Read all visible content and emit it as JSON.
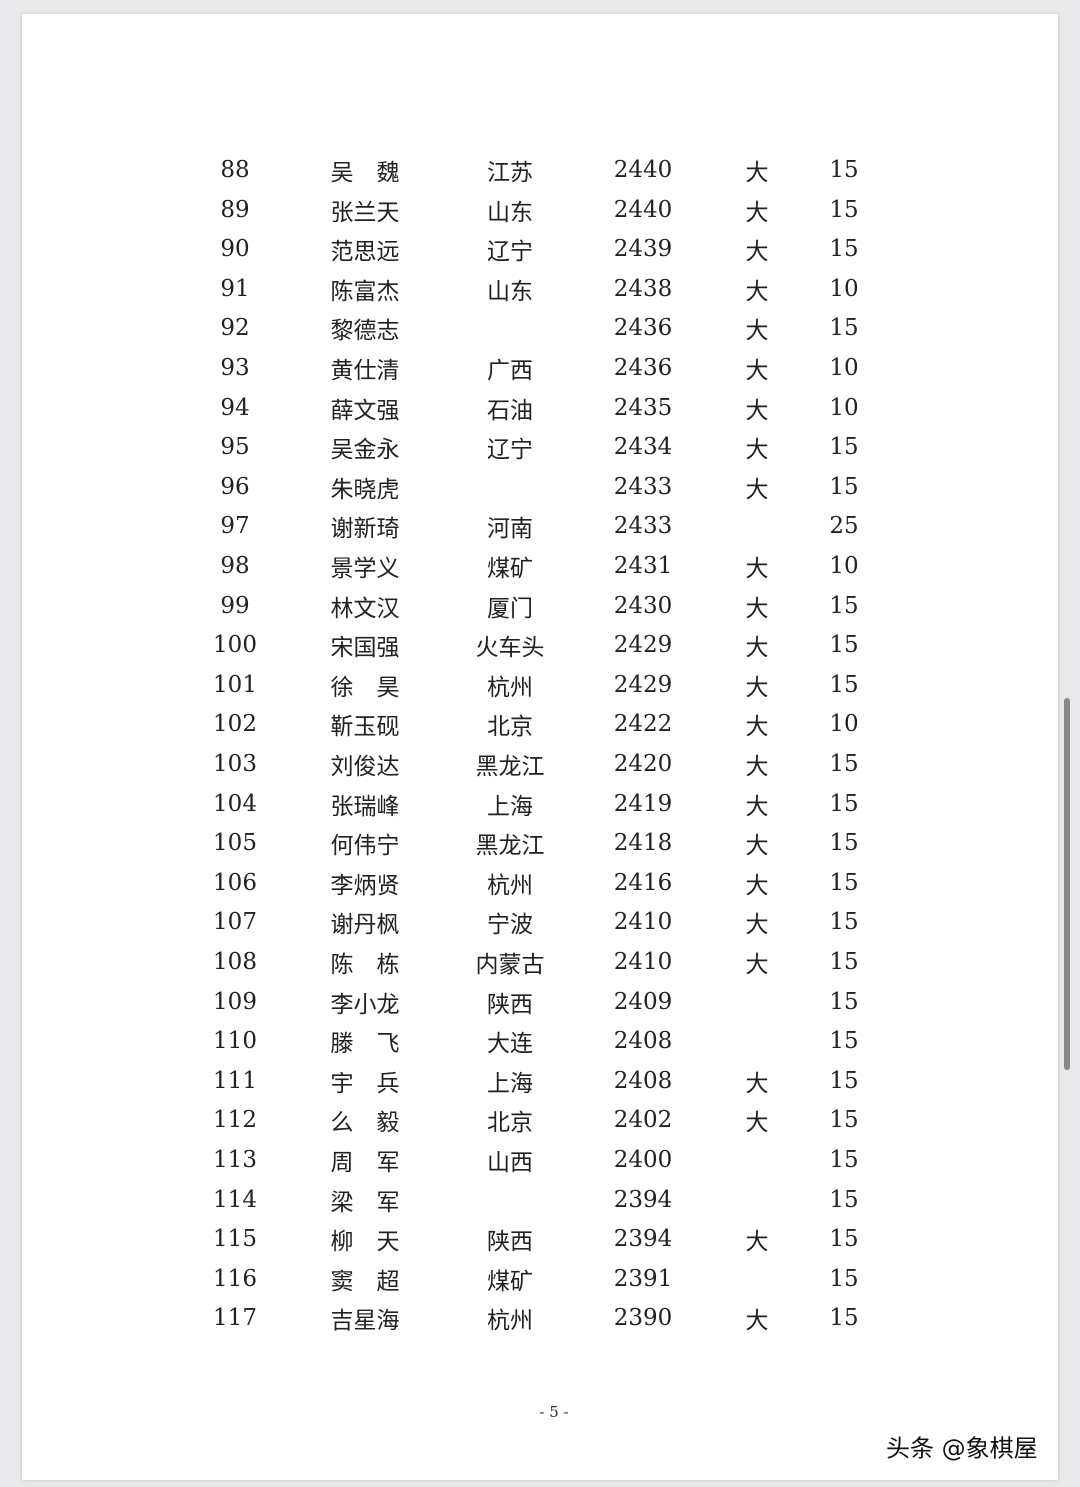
{
  "table": {
    "rows": [
      [
        "88",
        "吴　魏",
        "江苏",
        "2440",
        "大",
        "15"
      ],
      [
        "89",
        "张兰天",
        "山东",
        "2440",
        "大",
        "15"
      ],
      [
        "90",
        "范思远",
        "辽宁",
        "2439",
        "大",
        "15"
      ],
      [
        "91",
        "陈富杰",
        "山东",
        "2438",
        "大",
        "10"
      ],
      [
        "92",
        "黎德志",
        null,
        "2436",
        "大",
        "15"
      ],
      [
        "93",
        "黄仕清",
        "广西",
        "2436",
        "大",
        "10"
      ],
      [
        "94",
        "薛文强",
        "石油",
        "2435",
        "大",
        "10"
      ],
      [
        "95",
        "吴金永",
        "辽宁",
        "2434",
        "大",
        "15"
      ],
      [
        "96",
        "朱晓虎",
        null,
        "2433",
        "大",
        "15"
      ],
      [
        "97",
        "谢新琦",
        "河南",
        "2433",
        null,
        "25"
      ],
      [
        "98",
        "景学义",
        "煤矿",
        "2431",
        "大",
        "10"
      ],
      [
        "99",
        "林文汉",
        "厦门",
        "2430",
        "大",
        "15"
      ],
      [
        "100",
        "宋国强",
        "火车头",
        "2429",
        "大",
        "15"
      ],
      [
        "101",
        "徐　昊",
        "杭州",
        "2429",
        "大",
        "15"
      ],
      [
        "102",
        "靳玉砚",
        "北京",
        "2422",
        "大",
        "10"
      ],
      [
        "103",
        "刘俊达",
        "黑龙江",
        "2420",
        "大",
        "15"
      ],
      [
        "104",
        "张瑞峰",
        "上海",
        "2419",
        "大",
        "15"
      ],
      [
        "105",
        "何伟宁",
        "黑龙江",
        "2418",
        "大",
        "15"
      ],
      [
        "106",
        "李炳贤",
        "杭州",
        "2416",
        "大",
        "15"
      ],
      [
        "107",
        "谢丹枫",
        "宁波",
        "2410",
        "大",
        "15"
      ],
      [
        "108",
        "陈　栋",
        "内蒙古",
        "2410",
        "大",
        "15"
      ],
      [
        "109",
        "李小龙",
        "陕西",
        "2409",
        null,
        "15"
      ],
      [
        "110",
        "滕　飞",
        "大连",
        "2408",
        null,
        "15"
      ],
      [
        "111",
        "宇　兵",
        "上海",
        "2408",
        "大",
        "15"
      ],
      [
        "112",
        "么　毅",
        "北京",
        "2402",
        "大",
        "15"
      ],
      [
        "113",
        "周　军",
        "山西",
        "2400",
        null,
        "15"
      ],
      [
        "114",
        "梁　军",
        null,
        "2394",
        null,
        "15"
      ],
      [
        "115",
        "柳　天",
        "陕西",
        "2394",
        "大",
        "15"
      ],
      [
        "116",
        "窦　超",
        "煤矿",
        "2391",
        null,
        "15"
      ],
      [
        "117",
        "吉星海",
        "杭州",
        "2390",
        "大",
        "15"
      ]
    ]
  },
  "footer": {
    "page": "- 5 -"
  },
  "watermark": "头条 @象棋屋"
}
